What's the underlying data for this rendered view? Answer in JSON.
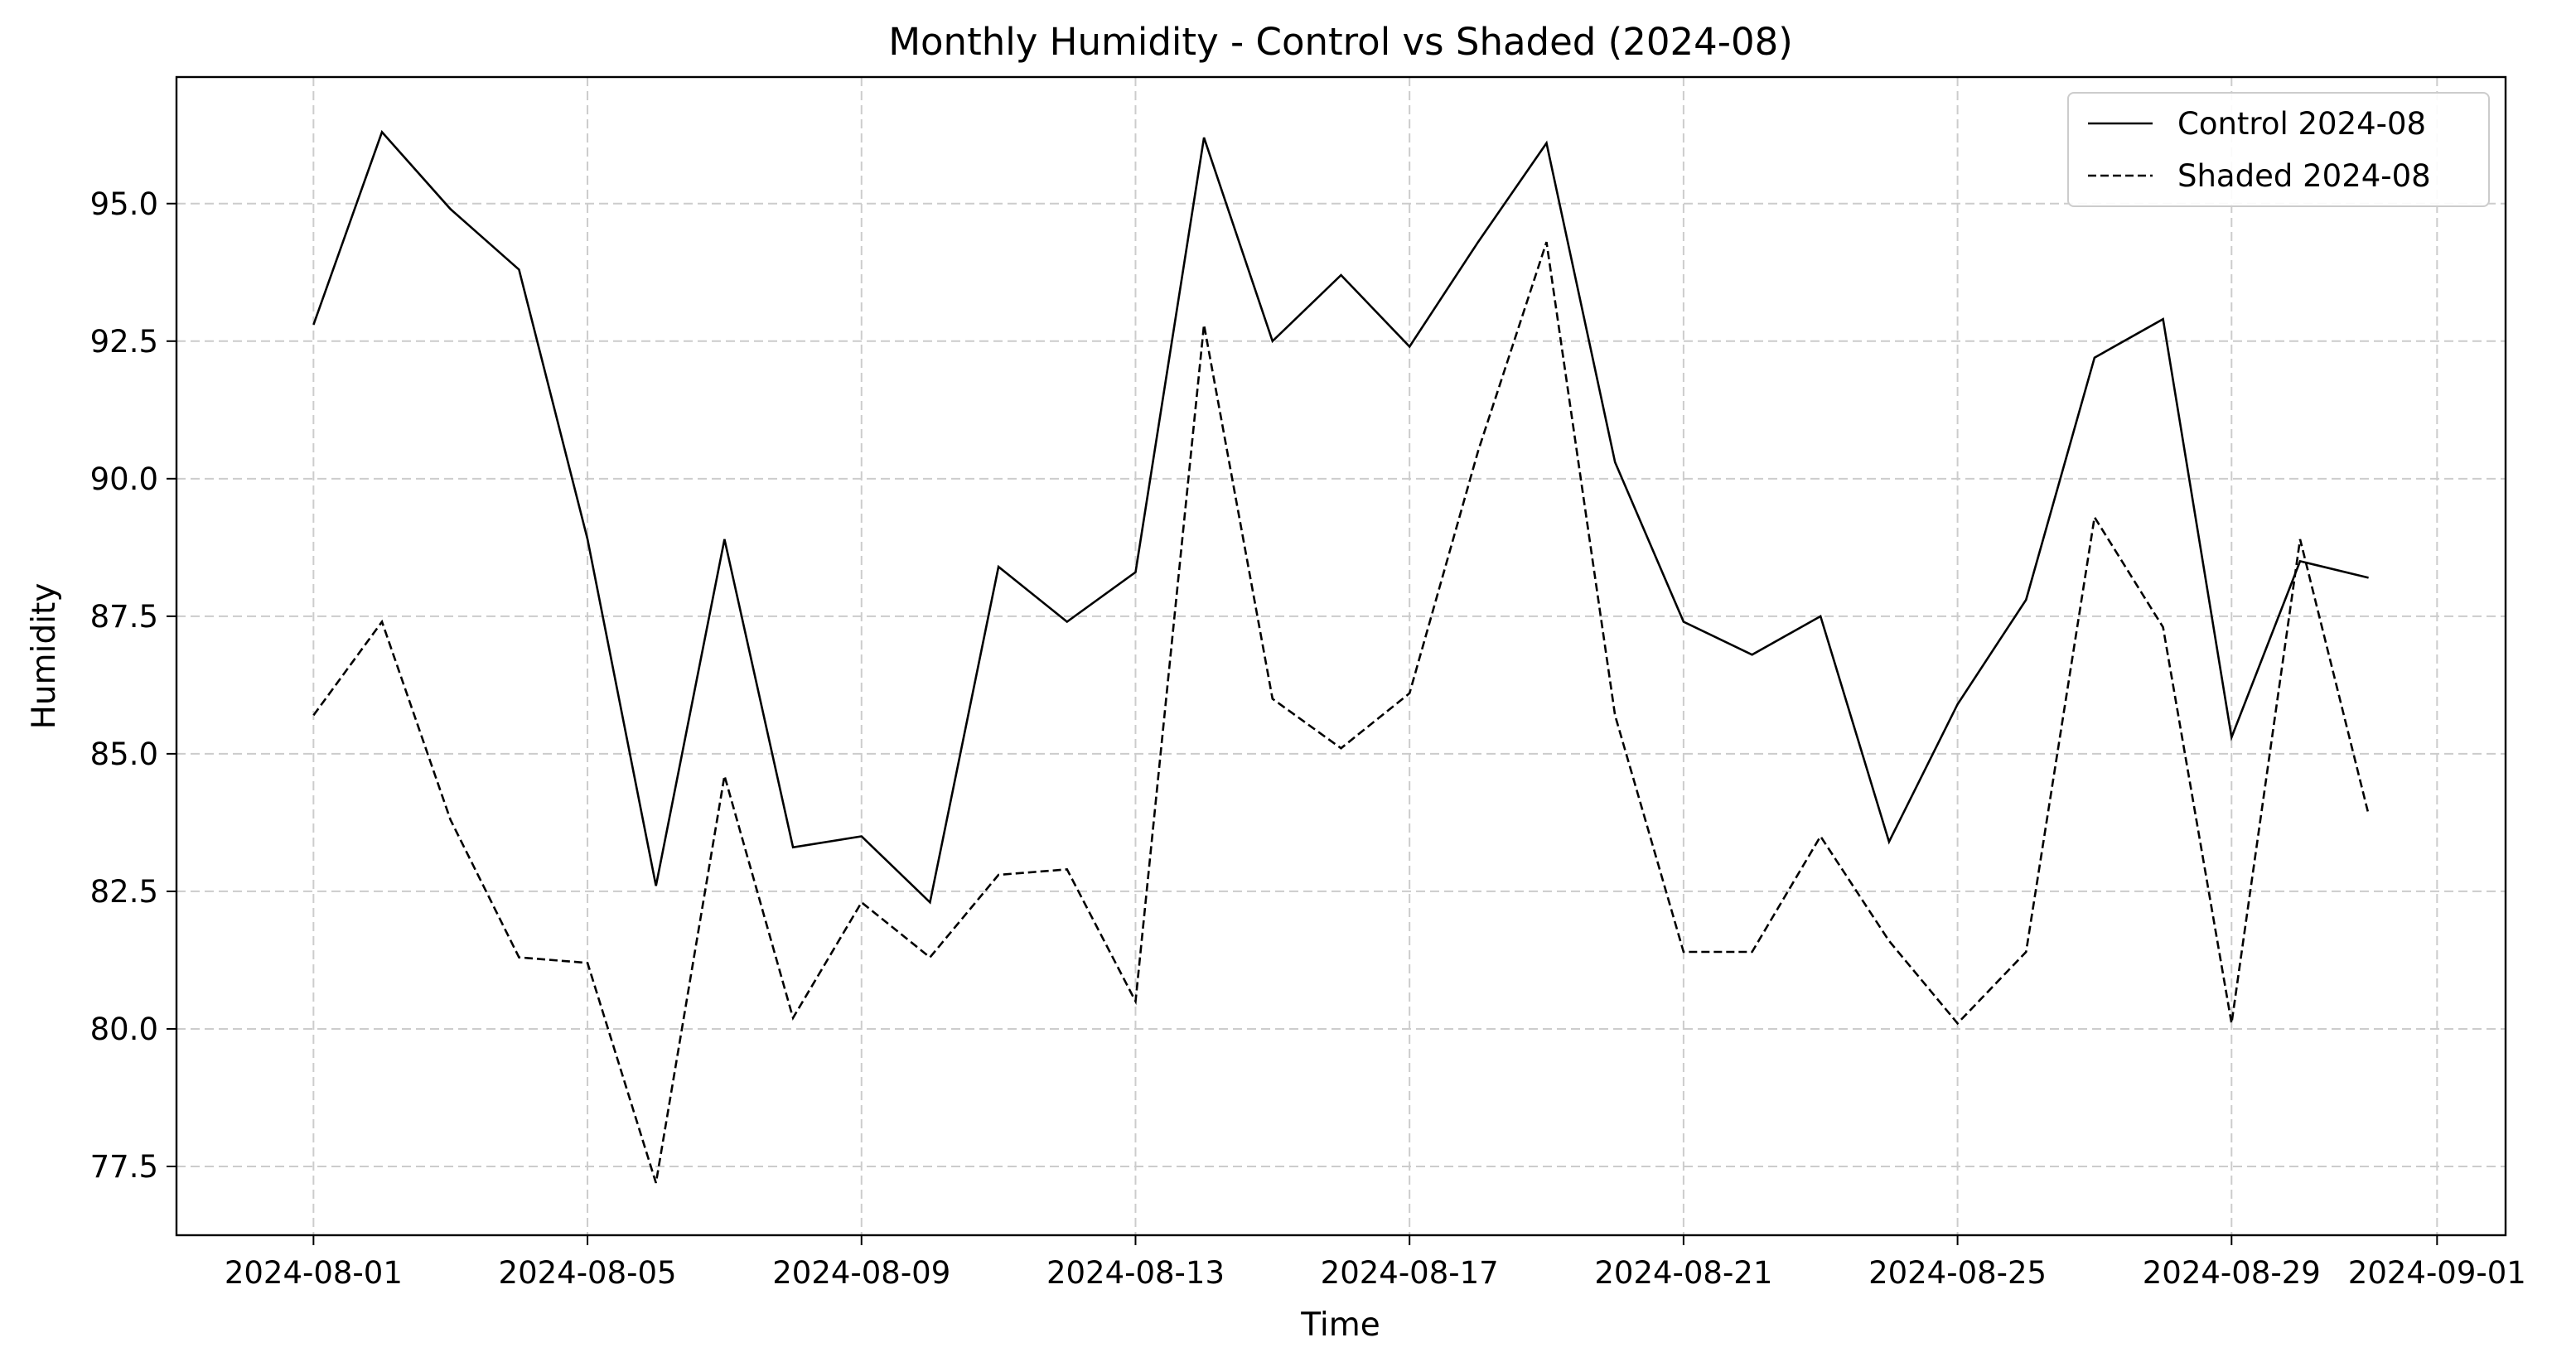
{
  "chart_data": {
    "type": "line",
    "title": "Monthly Humidity - Control vs Shaded (2024-08)",
    "xlabel": "Time",
    "ylabel": "Humidity",
    "x": [
      "2024-08-01",
      "2024-08-02",
      "2024-08-03",
      "2024-08-04",
      "2024-08-05",
      "2024-08-06",
      "2024-08-07",
      "2024-08-08",
      "2024-08-09",
      "2024-08-10",
      "2024-08-11",
      "2024-08-12",
      "2024-08-13",
      "2024-08-14",
      "2024-08-15",
      "2024-08-16",
      "2024-08-17",
      "2024-08-18",
      "2024-08-19",
      "2024-08-20",
      "2024-08-21",
      "2024-08-22",
      "2024-08-23",
      "2024-08-24",
      "2024-08-25",
      "2024-08-26",
      "2024-08-27",
      "2024-08-28",
      "2024-08-29",
      "2024-08-30",
      "2024-08-31"
    ],
    "series": [
      {
        "name": "Control 2024-08",
        "line_style": "solid",
        "values": [
          92.8,
          96.3,
          94.9,
          93.8,
          88.9,
          82.6,
          88.9,
          83.3,
          83.5,
          82.3,
          88.4,
          87.4,
          88.3,
          96.2,
          92.5,
          93.7,
          92.4,
          94.3,
          96.1,
          90.3,
          87.4,
          86.8,
          87.5,
          83.4,
          85.9,
          87.8,
          92.2,
          92.9,
          85.3,
          88.5,
          88.2
        ]
      },
      {
        "name": "Shaded 2024-08",
        "line_style": "dashed",
        "values": [
          85.7,
          87.4,
          83.8,
          81.3,
          81.2,
          77.2,
          84.6,
          80.2,
          82.3,
          81.3,
          82.8,
          82.9,
          80.5,
          92.8,
          86.0,
          85.1,
          86.1,
          90.5,
          94.3,
          85.7,
          81.4,
          81.4,
          83.5,
          81.6,
          80.1,
          81.4,
          89.3,
          87.3,
          80.1,
          88.9,
          83.9
        ]
      }
    ],
    "x_ticks": [
      "2024-08-01",
      "2024-08-05",
      "2024-08-09",
      "2024-08-13",
      "2024-08-17",
      "2024-08-21",
      "2024-08-25",
      "2024-08-29",
      "2024-09-01"
    ],
    "x_range": [
      "2024-07-30",
      "2024-09-02"
    ],
    "y_ticks": [
      "77.5",
      "80.0",
      "82.5",
      "85.0",
      "87.5",
      "90.0",
      "92.5",
      "95.0"
    ],
    "ylim": [
      76.25,
      97.3
    ],
    "grid": true,
    "legend_position": "top-right",
    "colors": {
      "line": "#000000",
      "grid": "#cccccc"
    }
  }
}
